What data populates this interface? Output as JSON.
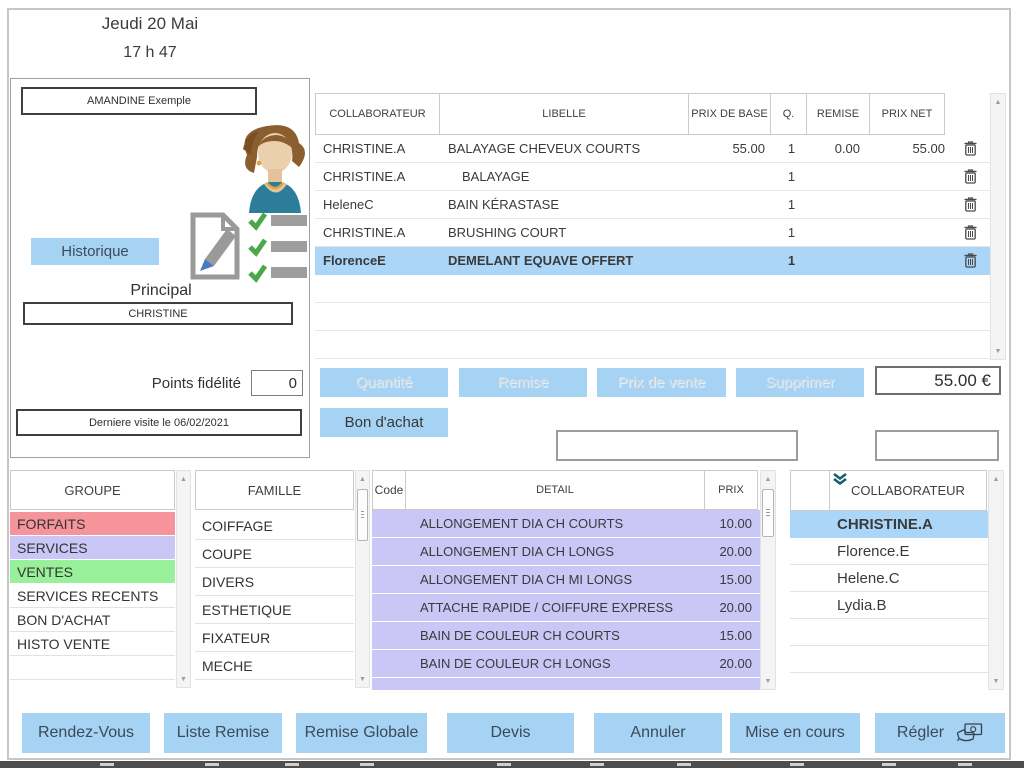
{
  "header": {
    "date": "Jeudi 20 Mai",
    "time": "17 h 47"
  },
  "client": {
    "name": "AMANDINE  Exemple",
    "history_button": "Historique",
    "principal_label": "Principal",
    "principal_value": "CHRISTINE",
    "loyalty_label": "Points fidélité",
    "loyalty_value": "0",
    "last_visit": "Derniere visite le 06/02/2021"
  },
  "ticket": {
    "columns": [
      "COLLABORATEUR",
      "LIBELLE",
      "PRIX DE BASE",
      "Q.",
      "REMISE",
      "PRIX NET"
    ],
    "rows": [
      {
        "collaborateur": "CHRISTINE.A",
        "libelle": "BALAYAGE CHEVEUX COURTS",
        "prix_base": "55.00",
        "q": "1",
        "remise": "0.00",
        "prix_net": "55.00",
        "selected": false,
        "indent": false
      },
      {
        "collaborateur": "CHRISTINE.A",
        "libelle": "BALAYAGE",
        "prix_base": "",
        "q": "1",
        "remise": "",
        "prix_net": "",
        "selected": false,
        "indent": true
      },
      {
        "collaborateur": "HeleneC",
        "libelle": "BAIN KÉRASTASE",
        "prix_base": "",
        "q": "1",
        "remise": "",
        "prix_net": "",
        "selected": false,
        "indent": false
      },
      {
        "collaborateur": "CHRISTINE.A",
        "libelle": "BRUSHING COURT",
        "prix_base": "",
        "q": "1",
        "remise": "",
        "prix_net": "",
        "selected": false,
        "indent": false
      },
      {
        "collaborateur": "FlorenceE",
        "libelle": "DEMELANT EQUAVE OFFERT",
        "prix_base": "",
        "q": "1",
        "remise": "",
        "prix_net": "",
        "selected": true,
        "indent": false
      }
    ],
    "empty_row_count": 3
  },
  "actions": {
    "quantite": "Quantité",
    "remise": "Remise",
    "prix_vente": "Prix de vente",
    "supprimer": "Supprimer",
    "total": "55.00 €",
    "bon_achat": "Bon d'achat",
    "note_input_value": "",
    "small_input_value": ""
  },
  "groupe": {
    "header": "GROUPE",
    "items": [
      {
        "label": "FORFAITS",
        "color": "#f6949c"
      },
      {
        "label": "SERVICES",
        "color": "#cac6f6"
      },
      {
        "label": "VENTES",
        "color": "#98f09a"
      },
      {
        "label": "SERVICES RECENTS",
        "color": ""
      },
      {
        "label": "BON D'ACHAT",
        "color": ""
      },
      {
        "label": "HISTO VENTE",
        "color": ""
      }
    ],
    "empty_row_count": 2
  },
  "famille": {
    "header": "FAMILLE",
    "items": [
      "COIFFAGE",
      "COUPE",
      "DIVERS",
      "ESTHETIQUE",
      "FIXATEUR",
      "MECHE"
    ]
  },
  "detail": {
    "columns": [
      "Code",
      "DETAIL",
      "PRIX"
    ],
    "row_color": "#cac6f6",
    "rows": [
      {
        "code": "",
        "detail": "ALLONGEMENT DIA CH COURTS",
        "prix": "10.00"
      },
      {
        "code": "",
        "detail": "ALLONGEMENT DIA CH LONGS",
        "prix": "20.00"
      },
      {
        "code": "",
        "detail": "ALLONGEMENT DIA CH MI LONGS",
        "prix": "15.00"
      },
      {
        "code": "",
        "detail": "ATTACHE RAPIDE / COIFFURE EXPRESS",
        "prix": "20.00"
      },
      {
        "code": "",
        "detail": "BAIN DE COULEUR CH COURTS",
        "prix": "15.00"
      },
      {
        "code": "",
        "detail": "BAIN DE COULEUR CH LONGS",
        "prix": "20.00"
      },
      {
        "code": "",
        "detail": "",
        "prix": ""
      }
    ]
  },
  "collaborateurs": {
    "header": "COLLABORATEUR",
    "items": [
      {
        "name": "CHRISTINE.A",
        "selected": true
      },
      {
        "name": "Florence.E",
        "selected": false
      },
      {
        "name": "Helene.C",
        "selected": false
      },
      {
        "name": "Lydia.B",
        "selected": false
      }
    ],
    "empty_row_count": 3
  },
  "footer": {
    "buttons": [
      "Rendez-Vous",
      "Liste Remise",
      "Remise Globale",
      "Devis",
      "Annuler",
      "Mise en cours",
      "Régler"
    ]
  },
  "icons": {
    "delete_row": "trash-icon",
    "client_edit": "edit-note-icon",
    "client_checklist": "checklist-icon",
    "client_avatar": "female-avatar",
    "collaborator_filter": "filter-chevrons-icon",
    "pay": "hand-money-icon",
    "scroll_up": "▲",
    "scroll_down": "▼"
  },
  "colors": {
    "accent_blue": "#a6d3f3",
    "selected_row_blue": "#abd6f7",
    "lavender": "#cac6f6",
    "pink": "#f6949c",
    "green": "#98f09a"
  }
}
